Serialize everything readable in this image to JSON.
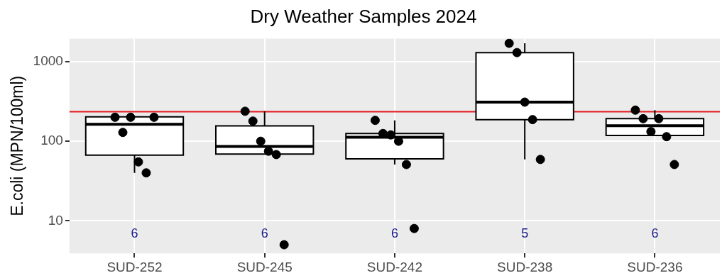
{
  "chart_data": {
    "type": "box",
    "title": "Dry Weather Samples 2024",
    "ylabel": "E.coli (MPN/100ml)",
    "categories": [
      "SUD-252",
      "SUD-245",
      "SUD-242",
      "SUD-238",
      "SUD-236"
    ],
    "boxes": [
      {
        "low": 40,
        "q1": 67,
        "median": 163,
        "q3": 202,
        "high": 202
      },
      {
        "low": 69,
        "q1": 69,
        "median": 86,
        "q3": 156,
        "high": 238
      },
      {
        "low": 51,
        "q1": 60,
        "median": 112,
        "q3": 125,
        "high": 183
      },
      {
        "low": 59,
        "q1": 187,
        "median": 310,
        "q3": 1300,
        "high": 1700
      },
      {
        "low": 118,
        "q1": 118,
        "median": 157,
        "q3": 192,
        "high": 246
      }
    ],
    "series": [
      {
        "type": "scatter",
        "color": "#000000",
        "x": [
          "SUD-252",
          "SUD-252",
          "SUD-252",
          "SUD-252",
          "SUD-252",
          "SUD-252",
          "SUD-245",
          "SUD-245",
          "SUD-245",
          "SUD-245",
          "SUD-245",
          "SUD-245",
          "SUD-242",
          "SUD-242",
          "SUD-242",
          "SUD-242",
          "SUD-242",
          "SUD-242",
          "SUD-238",
          "SUD-238",
          "SUD-238",
          "SUD-238",
          "SUD-238",
          "SUD-236",
          "SUD-236",
          "SUD-236",
          "SUD-236",
          "SUD-236",
          "SUD-236"
        ],
        "values": [
          200,
          129,
          200,
          55,
          40,
          200,
          238,
          179,
          100,
          75,
          68,
          5,
          183,
          125,
          120,
          100,
          51,
          8,
          1700,
          1300,
          310,
          187,
          59,
          246,
          192,
          132,
          192,
          114,
          51
        ]
      }
    ],
    "marker": "circle",
    "ylim": [
      3.9,
      1950
    ],
    "yticks": [
      10,
      100,
      1000
    ],
    "log": true,
    "grid": true,
    "ref_lines": [
      {
        "axis": "y",
        "value": 235,
        "color": "#e41a1c"
      }
    ],
    "annotations": [
      "6",
      "6",
      "6",
      "5",
      "6"
    ]
  }
}
